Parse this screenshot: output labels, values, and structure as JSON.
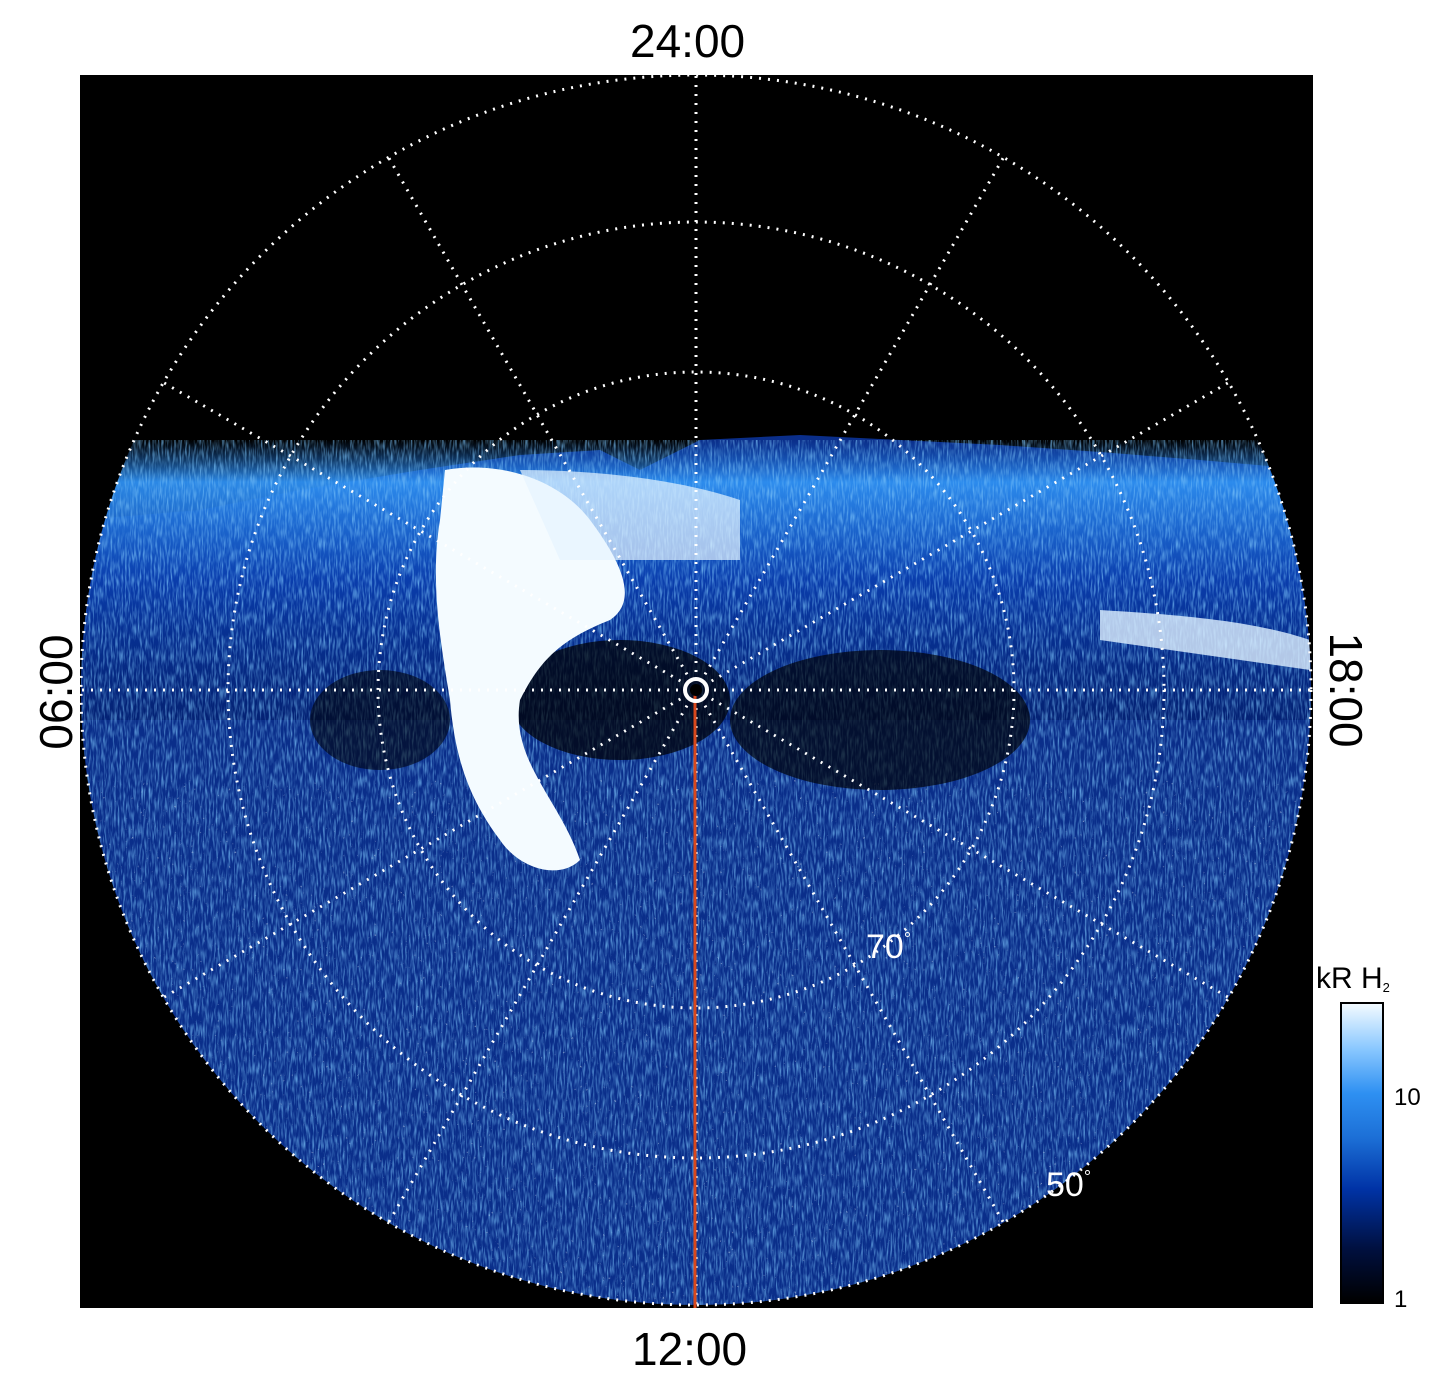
{
  "image": {
    "description_colors": {
      "background": "#000000",
      "grid": "#ffffff",
      "meridian_line": "#d9481c",
      "emission_bright": "#ffffff",
      "emission_mid": "#2e90f2",
      "emission_low": "#001a66"
    }
  },
  "local_time_labels": {
    "top": "24:00",
    "bottom": "12:00",
    "left": "06:00",
    "right": "18:00"
  },
  "latitude_labels": {
    "inner": "70",
    "outer": "50",
    "degree_symbol": "°"
  },
  "colorbar": {
    "title_main": "kR H",
    "title_sub": "2",
    "tick_10": "10",
    "tick_1": "1",
    "scale": "log",
    "range": [
      1,
      20
    ]
  }
}
